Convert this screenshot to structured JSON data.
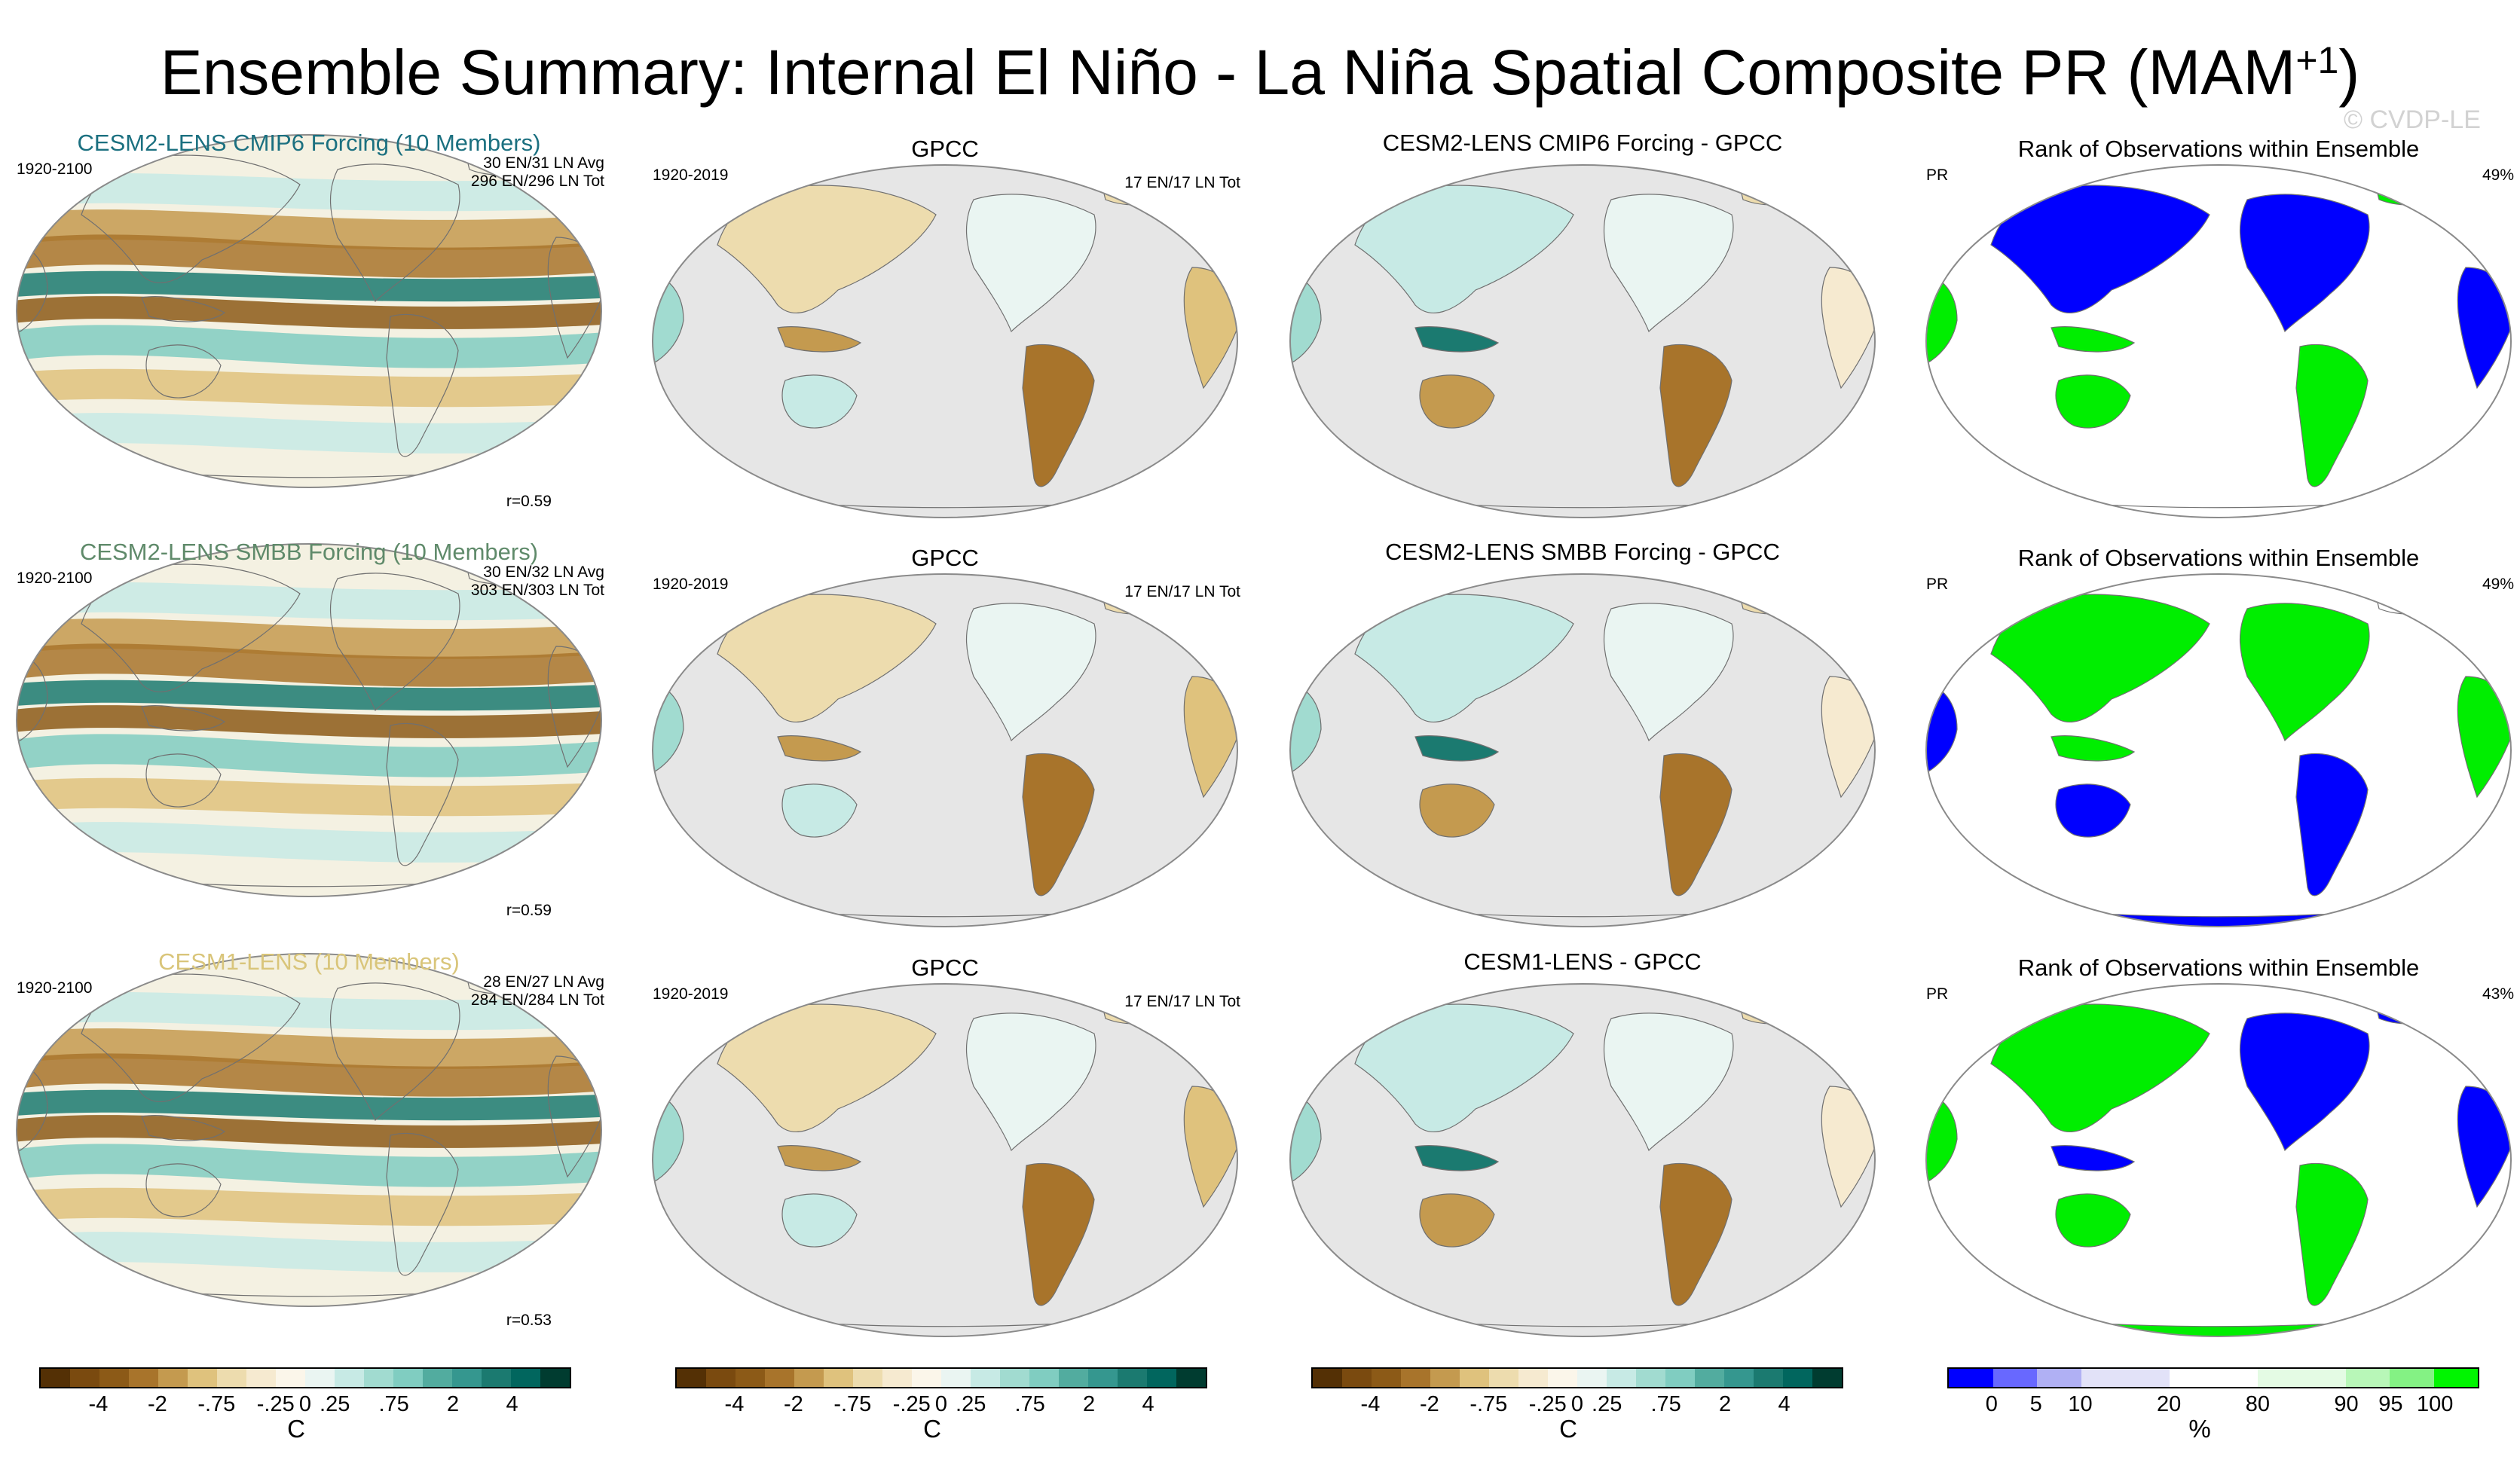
{
  "title": {
    "main": "Ensemble Summary: Internal El Niño - La Niña Spatial Composite PR (MAM",
    "sup": "+1",
    "close": ")"
  },
  "watermark": "© CVDP-LE",
  "rows": [
    {
      "model_title": "CESM2-LENS CMIP6 Forcing (10 Members)",
      "model_color": "#1b7080",
      "model_years": "1920-2100",
      "model_avg": "30 EN/31 LN Avg",
      "model_tot": "296 EN/296 LN Tot",
      "model_r": "r=0.59",
      "obs_title": "GPCC",
      "obs_years": "1920-2019",
      "obs_tot": "17 EN/17 LN Tot",
      "diff_title": "CESM2-LENS CMIP6 Forcing - GPCC",
      "rank_title": "Rank of Observations within Ensemble",
      "rank_var": "PR",
      "rank_pct": "49%"
    },
    {
      "model_title": "CESM2-LENS SMBB Forcing (10 Members)",
      "model_color": "#5f8a6a",
      "model_years": "1920-2100",
      "model_avg": "30 EN/32 LN Avg",
      "model_tot": "303 EN/303 LN Tot",
      "model_r": "r=0.59",
      "obs_title": "GPCC",
      "obs_years": "1920-2019",
      "obs_tot": "17 EN/17 LN Tot",
      "diff_title": "CESM2-LENS SMBB Forcing - GPCC",
      "rank_title": "Rank of Observations within Ensemble",
      "rank_var": "PR",
      "rank_pct": "49%"
    },
    {
      "model_title": "CESM1-LENS (10 Members)",
      "model_color": "#d9c57a",
      "model_years": "1920-2100",
      "model_avg": "28 EN/27 LN Avg",
      "model_tot": "284 EN/284 LN Tot",
      "model_r": "r=0.53",
      "obs_title": "GPCC",
      "obs_years": "1920-2019",
      "obs_tot": "17 EN/17 LN Tot",
      "diff_title": "CESM1-LENS - GPCC",
      "rank_title": "Rank of Observations within Ensemble",
      "rank_var": "PR",
      "rank_pct": "43%"
    }
  ],
  "colorbar_precip": {
    "colors": [
      "#543005",
      "#7a4a0f",
      "#8c5a17",
      "#a8742b",
      "#c49a4f",
      "#dfc27d",
      "#eddcae",
      "#f6ead0",
      "#fbf6ea",
      "#eaf5f2",
      "#c7eae5",
      "#a1dbd0",
      "#80cdc1",
      "#52ac9f",
      "#35978f",
      "#1b7a70",
      "#01665e",
      "#003c30"
    ],
    "ticks": [
      "-4",
      "-2",
      "-.75",
      "-.25",
      "0",
      ".25",
      ".75",
      "2",
      "4"
    ],
    "unit": "C"
  },
  "colorbar_rank": {
    "colors": [
      "#0000ff",
      "#6868ff",
      "#b0b0f4",
      "#e2e2f8",
      "#e2e2f8",
      "#ffffff",
      "#ffffff",
      "#e4fbe4",
      "#e4fbe4",
      "#b8f7b8",
      "#84f284",
      "#00f500"
    ],
    "ticks": [
      "0",
      "5",
      "10",
      "20",
      "80",
      "90",
      "95",
      "100"
    ],
    "unit": "%"
  },
  "colors": {
    "land_gray": "#e6e6e6",
    "brown": "#a0702a",
    "teal": "#1d7c72",
    "blue": "#0000ff",
    "green": "#00ee00"
  }
}
